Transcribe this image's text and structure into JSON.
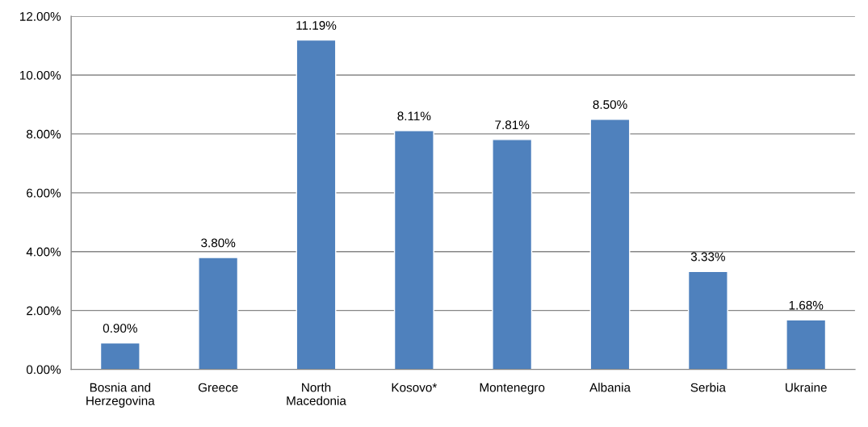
{
  "chart_data": {
    "type": "bar",
    "categories": [
      "Bosnia and\nHerzegovina",
      "Greece",
      "North\nMacedonia",
      "Kosovo*",
      "Montenegro",
      "Albania",
      "Serbia",
      "Ukraine"
    ],
    "values": [
      0.9,
      3.8,
      11.19,
      8.11,
      7.81,
      8.5,
      3.33,
      1.68
    ],
    "value_labels": [
      "0.90%",
      "3.80%",
      "11.19%",
      "8.11%",
      "7.81%",
      "8.50%",
      "3.33%",
      "1.68%"
    ],
    "color": "#4f81bd",
    "ylim": [
      0,
      12
    ],
    "yticks": [
      {
        "value": 0,
        "label": "0.00%"
      },
      {
        "value": 2,
        "label": "2.00%"
      },
      {
        "value": 4,
        "label": "4.00%"
      },
      {
        "value": 6,
        "label": "6.00%"
      },
      {
        "value": 8,
        "label": "8.00%"
      },
      {
        "value": 10,
        "label": "10.00%"
      },
      {
        "value": 12,
        "label": "12.00%"
      }
    ],
    "grid": "y"
  }
}
